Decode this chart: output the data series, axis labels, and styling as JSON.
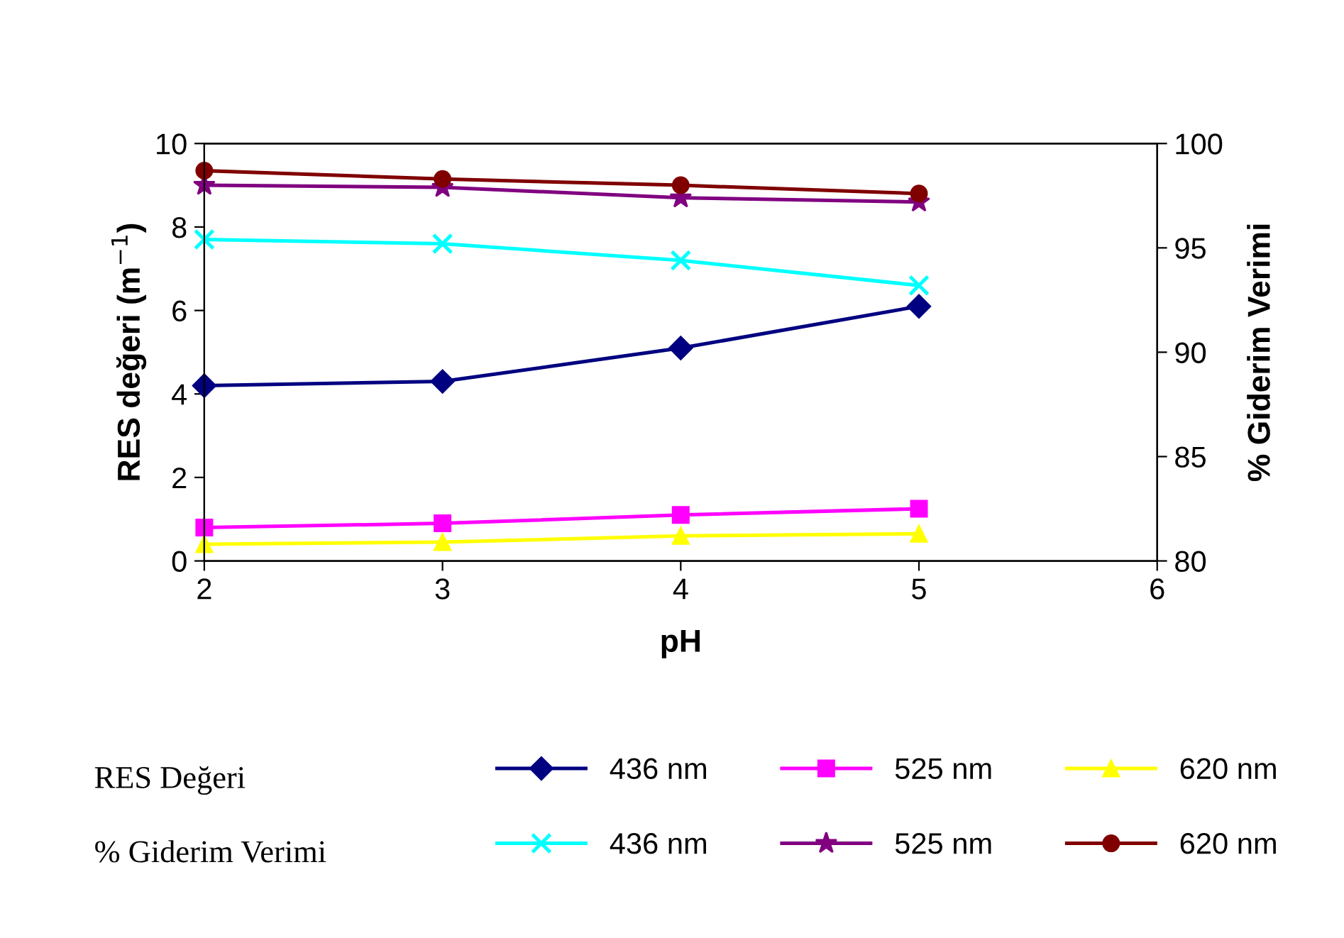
{
  "chart_data": {
    "type": "line",
    "xlabel": "pH",
    "ylabel": "RES değeri (m$^{−1}$)",
    "y2label": "% Giderim Verimi",
    "x": [
      2,
      3,
      4,
      5
    ],
    "xlim": [
      2,
      6
    ],
    "xticks": [
      2,
      3,
      4,
      5,
      6
    ],
    "ylim": [
      0,
      10
    ],
    "yticks": [
      0,
      2,
      4,
      6,
      8,
      10
    ],
    "y2lim": [
      80,
      100
    ],
    "y2ticks": [
      80,
      85,
      90,
      95,
      100
    ],
    "grid": false,
    "legend": "bottom",
    "line_style": "solid",
    "annotations": [
      "RES Değeri",
      "% Giderim Verimi"
    ],
    "series": [
      {
        "name": "436 nm",
        "color": "#000080",
        "marker": "diamond",
        "values": [
          4.2,
          4.3,
          5.1,
          6.1
        ]
      },
      {
        "name": "525 nm",
        "color": "#ff00ff",
        "marker": "square",
        "values": [
          0.8,
          0.9,
          1.1,
          1.25
        ]
      },
      {
        "name": "620 nm",
        "color": "#ffff00",
        "marker": "triangle",
        "values": [
          0.4,
          0.45,
          0.6,
          0.65
        ]
      },
      {
        "name": "436 nm",
        "color": "#00ffff",
        "marker": "cross",
        "axis": "y2",
        "values": [
          95.4,
          95.2,
          94.4,
          93.2
        ]
      },
      {
        "name": "525 nm",
        "color": "#800080",
        "marker": "star",
        "axis": "y2",
        "values": [
          98.0,
          97.9,
          97.4,
          97.2
        ]
      },
      {
        "name": "620 nm",
        "color": "#800000",
        "marker": "circle",
        "axis": "y2",
        "values": [
          98.7,
          98.3,
          98.0,
          97.6
        ]
      }
    ]
  }
}
